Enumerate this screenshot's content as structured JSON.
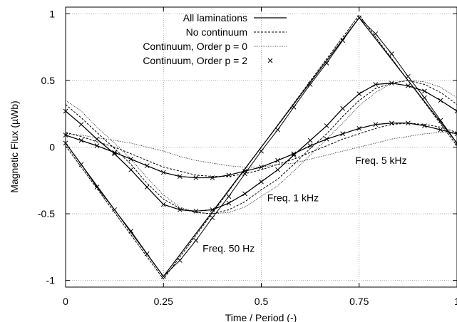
{
  "chart_data": {
    "type": "line",
    "xlabel": "Time / Period (-)",
    "ylabel": "Magnetic Flux (µWb)",
    "xlim": [
      0,
      1
    ],
    "ylim": [
      -1.05,
      1.05
    ],
    "grid": true,
    "legend_position": "top-center",
    "x_ticks": [
      {
        "value": 0,
        "label": "0"
      },
      {
        "value": 0.25,
        "label": "0.25"
      },
      {
        "value": 0.5,
        "label": "0.5"
      },
      {
        "value": 0.75,
        "label": "0.75"
      },
      {
        "value": 1,
        "label": "1"
      }
    ],
    "y_ticks": [
      {
        "value": -1,
        "label": "-1"
      },
      {
        "value": -0.5,
        "label": "-0.5"
      },
      {
        "value": 0,
        "label": "0"
      },
      {
        "value": 0.5,
        "label": "0.5"
      },
      {
        "value": 1,
        "label": "1"
      }
    ],
    "legend": [
      {
        "name": "All laminations",
        "style": "solid"
      },
      {
        "name": "No continuum",
        "style": "dashed"
      },
      {
        "name": "Continuum, Order p = 0",
        "style": "dotted"
      },
      {
        "name": "Continuum, Order p = 2",
        "style": "cross"
      }
    ],
    "annotations": [
      {
        "text": "Freq. 50 Hz",
        "x": 0.35,
        "y": -0.76
      },
      {
        "text": "Freq. 1 kHz",
        "x": 0.515,
        "y": -0.38
      },
      {
        "text": "Freq. 5 kHz",
        "x": 0.74,
        "y": -0.1
      }
    ],
    "series": [
      {
        "name": "All laminations",
        "group": "Freq. 50 Hz",
        "x": [
          0,
          0.25,
          0.75,
          1
        ],
        "y": [
          0.03,
          -0.97,
          0.97,
          0.03
        ]
      },
      {
        "name": "No continuum",
        "group": "Freq. 50 Hz",
        "x": [
          0,
          0.25,
          0.75,
          1
        ],
        "y": [
          0.01,
          -0.99,
          0.99,
          0.01
        ]
      },
      {
        "name": "Continuum, Order p = 0",
        "group": "Freq. 50 Hz",
        "x": [
          0,
          0.25,
          0.75,
          1
        ],
        "y": [
          0.01,
          -0.99,
          0.99,
          0.01
        ]
      },
      {
        "name": "Continuum, Order p = 2",
        "group": "Freq. 50 Hz",
        "x": [
          0,
          0.04,
          0.08,
          0.125,
          0.167,
          0.208,
          0.25,
          0.292,
          0.333,
          0.375,
          0.417,
          0.458,
          0.5,
          0.542,
          0.583,
          0.625,
          0.667,
          0.708,
          0.75,
          0.792,
          0.833,
          0.875,
          0.917,
          0.958,
          1
        ],
        "y": [
          0.03,
          -0.13,
          -0.3,
          -0.47,
          -0.63,
          -0.8,
          -0.97,
          -0.85,
          -0.7,
          -0.53,
          -0.37,
          -0.2,
          -0.03,
          0.13,
          0.3,
          0.47,
          0.63,
          0.8,
          0.97,
          0.85,
          0.7,
          0.53,
          0.37,
          0.2,
          0.03
        ]
      },
      {
        "name": "All laminations",
        "group": "Freq. 1 kHz",
        "x": [
          0,
          0.04,
          0.08,
          0.125,
          0.167,
          0.208,
          0.25,
          0.292,
          0.333,
          0.375,
          0.417,
          0.458,
          0.5,
          0.542,
          0.583,
          0.625,
          0.667,
          0.708,
          0.75,
          0.792,
          0.833,
          0.875,
          0.917,
          0.958,
          1
        ],
        "y": [
          0.27,
          0.17,
          0.06,
          -0.05,
          -0.17,
          -0.3,
          -0.43,
          -0.47,
          -0.48,
          -0.47,
          -0.42,
          -0.35,
          -0.26,
          -0.17,
          -0.06,
          0.05,
          0.16,
          0.29,
          0.4,
          0.47,
          0.48,
          0.46,
          0.42,
          0.35,
          0.27
        ]
      },
      {
        "name": "No continuum",
        "group": "Freq. 1 kHz",
        "x": [
          0,
          0.04,
          0.08,
          0.125,
          0.167,
          0.208,
          0.25,
          0.292,
          0.333,
          0.375,
          0.417,
          0.458,
          0.5,
          0.542,
          0.583,
          0.625,
          0.667,
          0.708,
          0.75,
          0.792,
          0.833,
          0.875,
          0.917,
          0.958,
          1
        ],
        "y": [
          0.32,
          0.22,
          0.11,
          -0.01,
          -0.13,
          -0.27,
          -0.39,
          -0.46,
          -0.49,
          -0.5,
          -0.47,
          -0.41,
          -0.32,
          -0.24,
          -0.13,
          -0.01,
          0.1,
          0.23,
          0.35,
          0.44,
          0.48,
          0.5,
          0.47,
          0.41,
          0.32
        ]
      },
      {
        "name": "Continuum, Order p = 0",
        "group": "Freq. 1 kHz",
        "x": [
          0,
          0.04,
          0.08,
          0.125,
          0.167,
          0.208,
          0.25,
          0.292,
          0.333,
          0.375,
          0.417,
          0.458,
          0.5,
          0.542,
          0.583,
          0.625,
          0.667,
          0.708,
          0.75,
          0.792,
          0.833,
          0.875,
          0.917,
          0.958,
          1
        ],
        "y": [
          0.35,
          0.27,
          0.15,
          0.03,
          -0.09,
          -0.23,
          -0.36,
          -0.45,
          -0.49,
          -0.5,
          -0.49,
          -0.45,
          -0.37,
          -0.29,
          -0.18,
          -0.06,
          0.06,
          0.18,
          0.31,
          0.41,
          0.48,
          0.5,
          0.49,
          0.45,
          0.37
        ]
      },
      {
        "name": "Continuum, Order p = 2",
        "group": "Freq. 1 kHz",
        "x": [
          0,
          0.04,
          0.08,
          0.125,
          0.167,
          0.208,
          0.25,
          0.292,
          0.333,
          0.375,
          0.417,
          0.458,
          0.5,
          0.542,
          0.583,
          0.625,
          0.667,
          0.708,
          0.75,
          0.792,
          0.833,
          0.875,
          0.917,
          0.958,
          1
        ],
        "y": [
          0.27,
          0.17,
          0.06,
          -0.05,
          -0.17,
          -0.3,
          -0.43,
          -0.47,
          -0.48,
          -0.47,
          -0.42,
          -0.35,
          -0.26,
          -0.17,
          -0.06,
          0.05,
          0.16,
          0.29,
          0.4,
          0.47,
          0.48,
          0.46,
          0.42,
          0.35,
          0.27
        ]
      },
      {
        "name": "All laminations",
        "group": "Freq. 5 kHz",
        "x": [
          0,
          0.04,
          0.08,
          0.125,
          0.167,
          0.208,
          0.25,
          0.292,
          0.333,
          0.375,
          0.417,
          0.458,
          0.5,
          0.542,
          0.583,
          0.625,
          0.667,
          0.708,
          0.75,
          0.792,
          0.833,
          0.875,
          0.917,
          0.958,
          1
        ],
        "y": [
          0.09,
          0.05,
          0.01,
          -0.04,
          -0.09,
          -0.14,
          -0.19,
          -0.22,
          -0.23,
          -0.23,
          -0.21,
          -0.18,
          -0.15,
          -0.1,
          -0.05,
          0.01,
          0.06,
          0.1,
          0.14,
          0.17,
          0.18,
          0.18,
          0.16,
          0.13,
          0.1
        ]
      },
      {
        "name": "No continuum",
        "group": "Freq. 5 kHz",
        "x": [
          0,
          0.04,
          0.08,
          0.125,
          0.167,
          0.208,
          0.25,
          0.292,
          0.333,
          0.375,
          0.417,
          0.458,
          0.5,
          0.542,
          0.583,
          0.625,
          0.667,
          0.708,
          0.75,
          0.792,
          0.833,
          0.875,
          0.917,
          0.958,
          1
        ],
        "y": [
          0.11,
          0.08,
          0.04,
          0.0,
          -0.05,
          -0.1,
          -0.15,
          -0.18,
          -0.21,
          -0.22,
          -0.22,
          -0.2,
          -0.17,
          -0.13,
          -0.09,
          -0.04,
          0.01,
          0.06,
          0.1,
          0.14,
          0.17,
          0.18,
          0.17,
          0.15,
          0.11
        ]
      },
      {
        "name": "Continuum, Order p = 0",
        "group": "Freq. 5 kHz",
        "x": [
          0,
          0.04,
          0.08,
          0.125,
          0.167,
          0.208,
          0.25,
          0.292,
          0.333,
          0.375,
          0.417,
          0.458,
          0.5,
          0.542,
          0.583,
          0.625,
          0.667,
          0.708,
          0.75,
          0.792,
          0.833,
          0.875,
          0.917,
          0.958,
          1
        ],
        "y": [
          0.1,
          0.09,
          0.07,
          0.05,
          0.03,
          0.0,
          -0.03,
          -0.07,
          -0.1,
          -0.12,
          -0.14,
          -0.15,
          -0.15,
          -0.13,
          -0.12,
          -0.09,
          -0.06,
          -0.03,
          0.0,
          0.03,
          0.06,
          0.08,
          0.1,
          0.11,
          0.1
        ]
      },
      {
        "name": "Continuum, Order p = 2",
        "group": "Freq. 5 kHz",
        "x": [
          0,
          0.04,
          0.08,
          0.125,
          0.167,
          0.208,
          0.25,
          0.292,
          0.333,
          0.375,
          0.417,
          0.458,
          0.5,
          0.542,
          0.583,
          0.625,
          0.667,
          0.708,
          0.75,
          0.792,
          0.833,
          0.875,
          0.917,
          0.958,
          1
        ],
        "y": [
          0.09,
          0.05,
          0.01,
          -0.04,
          -0.09,
          -0.14,
          -0.19,
          -0.22,
          -0.23,
          -0.23,
          -0.21,
          -0.18,
          -0.15,
          -0.1,
          -0.05,
          0.01,
          0.06,
          0.1,
          0.14,
          0.17,
          0.18,
          0.18,
          0.16,
          0.13,
          0.1
        ]
      }
    ]
  }
}
